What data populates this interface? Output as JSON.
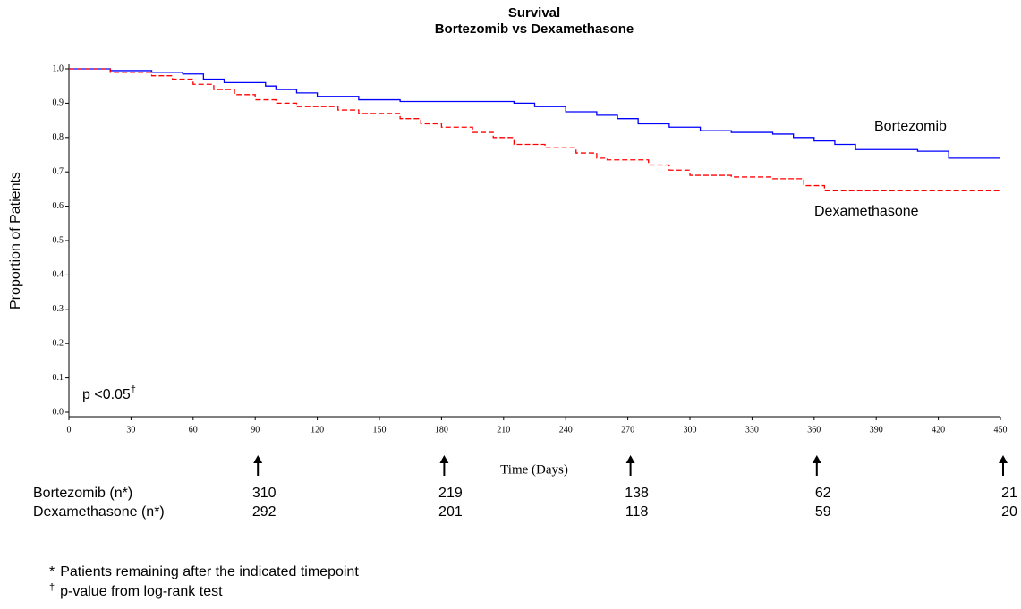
{
  "chart_data": {
    "type": "line",
    "step": true,
    "title": "Survival",
    "subtitle": "Bortezomib vs Dexamethasone",
    "xlabel": "Time (Days)",
    "ylabel": "Proportion of Patients",
    "xlim": [
      0,
      450
    ],
    "xticks": [
      0,
      30,
      60,
      90,
      120,
      150,
      180,
      210,
      240,
      270,
      300,
      330,
      360,
      390,
      420,
      450
    ],
    "ylim": [
      0,
      1
    ],
    "yticks": [
      {
        "value": 0,
        "label": "0.0"
      },
      0.1,
      0.2,
      0.3,
      0.4,
      0.5,
      0.6,
      0.7,
      0.8,
      0.9,
      {
        "value": 1,
        "label": "1.0"
      }
    ],
    "series": [
      {
        "name": "Bortezomib",
        "color": "#0000ff",
        "dashed": false,
        "x": [
          0,
          20,
          40,
          55,
          65,
          75,
          95,
          100,
          110,
          120,
          140,
          160,
          215,
          225,
          240,
          255,
          265,
          275,
          290,
          305,
          320,
          340,
          350,
          360,
          370,
          380,
          410,
          425,
          450
        ],
        "values": [
          1.0,
          0.995,
          0.99,
          0.985,
          0.97,
          0.96,
          0.95,
          0.94,
          0.93,
          0.92,
          0.91,
          0.905,
          0.9,
          0.89,
          0.875,
          0.865,
          0.855,
          0.84,
          0.83,
          0.82,
          0.815,
          0.81,
          0.8,
          0.79,
          0.78,
          0.765,
          0.76,
          0.74,
          0.74
        ]
      },
      {
        "name": "Dexamethasone",
        "color": "#ff0000",
        "dashed": true,
        "x": [
          0,
          20,
          40,
          50,
          60,
          70,
          80,
          90,
          100,
          110,
          130,
          140,
          160,
          170,
          180,
          195,
          205,
          215,
          230,
          245,
          255,
          260,
          280,
          290,
          300,
          320,
          340,
          355,
          365,
          450
        ],
        "values": [
          1.0,
          0.99,
          0.98,
          0.97,
          0.955,
          0.94,
          0.925,
          0.91,
          0.9,
          0.89,
          0.88,
          0.87,
          0.855,
          0.84,
          0.83,
          0.815,
          0.8,
          0.78,
          0.77,
          0.755,
          0.74,
          0.735,
          0.72,
          0.705,
          0.69,
          0.685,
          0.68,
          0.66,
          0.645,
          0.645
        ]
      }
    ],
    "p_value": {
      "text": "p <0.05",
      "mark": "†"
    },
    "risk_table": {
      "timepoints": [
        90,
        180,
        270,
        360,
        450
      ],
      "rows": [
        {
          "label": "Bortezomib (n*)",
          "counts": [
            310,
            219,
            138,
            62,
            21
          ]
        },
        {
          "label": "Dexamethasone (n*)",
          "counts": [
            292,
            201,
            118,
            59,
            20
          ]
        }
      ]
    },
    "footnotes": [
      {
        "mark": "*",
        "text": "Patients remaining after the indicated timepoint"
      },
      {
        "mark": "†",
        "text": "p-value from log-rank test"
      }
    ]
  }
}
